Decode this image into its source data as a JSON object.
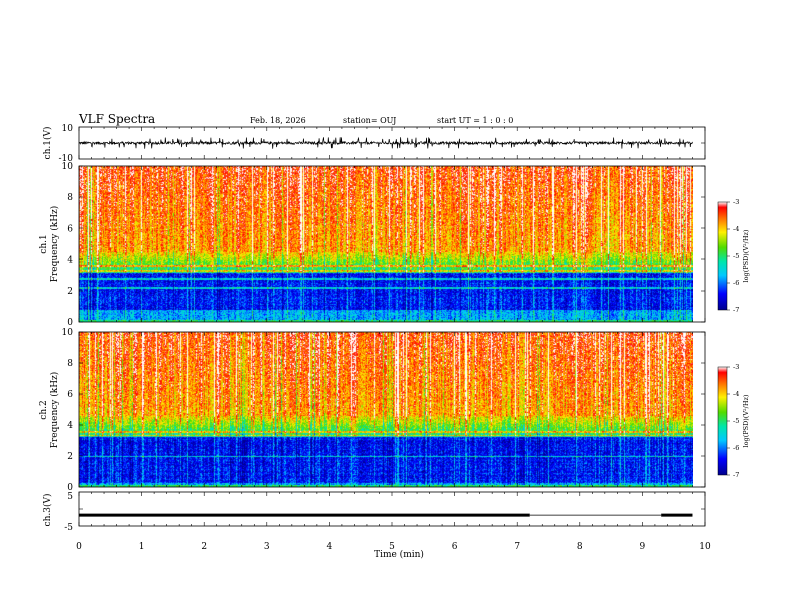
{
  "header": {
    "title": "VLF Spectra",
    "date": "Feb. 18, 2026",
    "station": "station= OUJ",
    "start": "start  UT =   1 : 0  : 0"
  },
  "chart_data": [
    {
      "type": "line",
      "name_panel": "ch1-waveform",
      "ylabel": "ch.1(V)",
      "ylim": [
        -10,
        10
      ],
      "ytick_labels": [
        "10",
        "-10"
      ],
      "x_range_min": [
        0,
        10
      ],
      "trace_range_V": [
        -2,
        2
      ],
      "trace_end_min": 9.8
    },
    {
      "type": "heatmap",
      "name_panel": "ch1-spectrogram",
      "ylabel": "ch.1\nFrequency (kHz)",
      "ylabel_line1": "ch.1",
      "ylabel_line2": "Frequency  (kHz)",
      "ylim": [
        0,
        10
      ],
      "ytick_labels": [
        "10",
        "8",
        "6",
        "4",
        "2",
        "0"
      ],
      "x_range_min": [
        0,
        9.8
      ],
      "colorbar": {
        "label": "log(PSD)(V²/Hz)",
        "range": [
          -7,
          -3
        ],
        "tick_labels": [
          "-3",
          "-4",
          "-5",
          "-6",
          "-7"
        ]
      },
      "color_transition_kHz": 4.5,
      "low_band_kHz": [
        0.8,
        3.2
      ],
      "harmonic_lines_kHz": [
        2.2,
        2.8,
        3.3,
        3.6
      ]
    },
    {
      "type": "heatmap",
      "name_panel": "ch2-spectrogram",
      "ylabel_line1": "ch.2",
      "ylabel_line2": "Frequency  (kHz)",
      "ylim": [
        0,
        10
      ],
      "ytick_labels": [
        "10",
        "8",
        "6",
        "4",
        "2",
        "0"
      ],
      "x_range_min": [
        0,
        9.8
      ],
      "colorbar": {
        "label": "log(PSD)(V²/Hz)",
        "range": [
          -7,
          -3
        ],
        "tick_labels": [
          "-3",
          "-4",
          "-5",
          "-6",
          "-7"
        ]
      },
      "color_transition_kHz": 4.6,
      "low_band_kHz": [
        0.3,
        3.3
      ],
      "harmonic_lines_kHz": [
        2.0,
        3.3,
        3.6
      ]
    },
    {
      "type": "line",
      "name_panel": "ch3-waveform",
      "ylabel": "ch.3(V)",
      "ylim": [
        -5,
        5
      ],
      "ytick_labels": [
        "5",
        "-5"
      ],
      "x_range_min": [
        0,
        10
      ],
      "trace_level_V": -1.8,
      "gaps_min": [
        [
          7.2,
          9.3
        ]
      ],
      "xlabel": "Time  (min)",
      "xtick_labels": [
        "0",
        "1",
        "2",
        "3",
        "4",
        "5",
        "6",
        "7",
        "8",
        "9",
        "10"
      ]
    }
  ]
}
